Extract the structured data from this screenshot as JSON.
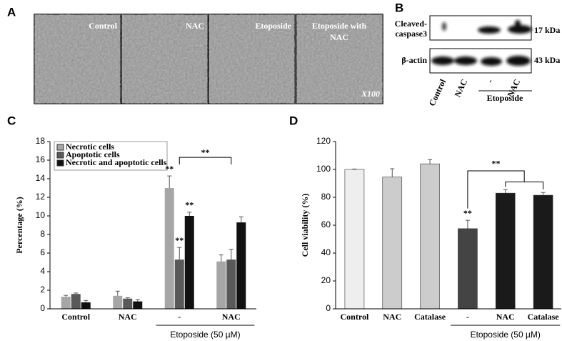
{
  "panel_a": {
    "label": "A",
    "images": [
      "Control",
      "NAC",
      "Etoposide",
      "Etoposide with NAC"
    ],
    "magnification": "X100"
  },
  "panel_b": {
    "label": "B",
    "rows": [
      {
        "name": "Cleaved-",
        "name2": "caspase3",
        "size": "17 kDa"
      },
      {
        "name": "β-actin",
        "size": "43 kDa"
      }
    ],
    "lanes": [
      "Control",
      "NAC",
      "-",
      "NAC"
    ],
    "group": "Etoposide"
  },
  "chart_data": [
    {
      "label": "C",
      "type": "bar",
      "ylabel": "Percentage (%)",
      "categories": [
        "Control",
        "NAC",
        "-",
        "NAC"
      ],
      "group_label": "Etoposide (50 µM)",
      "ylim": [
        0,
        18
      ],
      "yticks": [
        0,
        2,
        4,
        6,
        8,
        10,
        12,
        14,
        16,
        18
      ],
      "series": [
        {
          "name": "Necrotic cells",
          "color": "#a6a6a6",
          "values": [
            1.3,
            1.4,
            13.0,
            5.1
          ],
          "errors": [
            0.15,
            0.5,
            1.3,
            0.7
          ]
        },
        {
          "name": "Apoptotic cells",
          "color": "#595959",
          "values": [
            1.6,
            1.1,
            5.3,
            5.3
          ],
          "errors": [
            0.1,
            0.1,
            1.3,
            1.1
          ]
        },
        {
          "name": "Necrotic and apoptotic cells",
          "color": "#111111",
          "values": [
            0.7,
            0.8,
            10.0,
            9.3
          ],
          "errors": [
            0.2,
            0.2,
            0.4,
            0.6
          ]
        }
      ],
      "annotations": [
        "**",
        "**",
        "**",
        "**"
      ]
    },
    {
      "label": "D",
      "type": "bar",
      "ylabel": "Cell viability (%)",
      "categories": [
        "Control",
        "NAC",
        "Catalase",
        "-",
        "NAC",
        "Catalase"
      ],
      "group_label": "Etoposide (50 µM)",
      "ylim": [
        0,
        120
      ],
      "yticks": [
        0,
        20,
        40,
        60,
        80,
        100,
        120
      ],
      "values": [
        100,
        94.5,
        104,
        57.5,
        83,
        81.5
      ],
      "errors": [
        0.3,
        6,
        3,
        6,
        2.5,
        2
      ],
      "colors": [
        "#eeeeee",
        "#cccccc",
        "#cccccc",
        "#444444",
        "#1a1a1a",
        "#1a1a1a"
      ],
      "annotations": [
        "**",
        "**"
      ]
    }
  ]
}
